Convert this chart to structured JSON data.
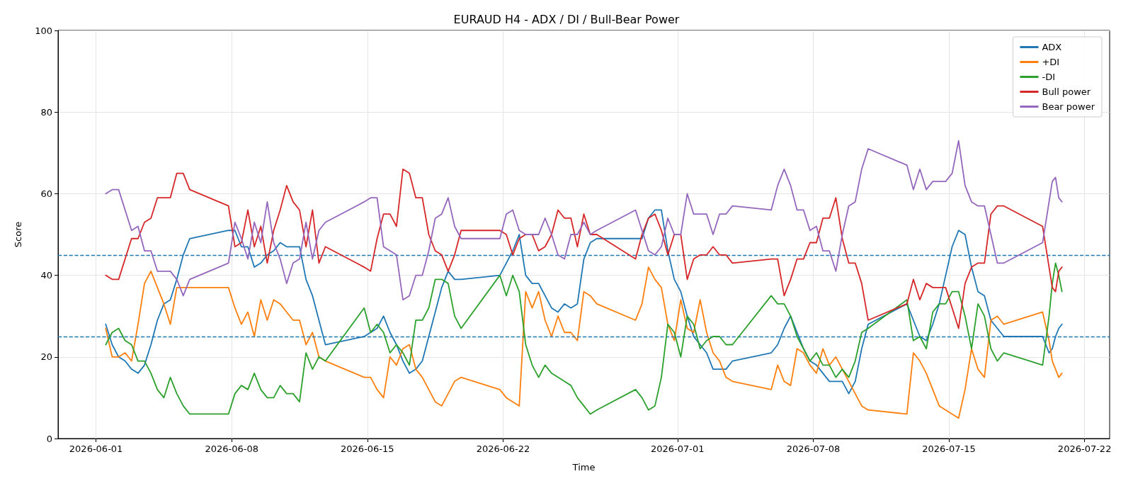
{
  "chart_data": {
    "type": "line",
    "title": "EURAUD H4 - ADX / DI / Bull-Bear Power",
    "xlabel": "Time",
    "ylabel": "Score",
    "x": [
      "2026-06-01T12:00",
      "2026-06-01T20:00",
      "2026-06-02T04:00",
      "2026-06-02T12:00",
      "2026-06-02T20:00",
      "2026-06-03T04:00",
      "2026-06-03T12:00",
      "2026-06-03T20:00",
      "2026-06-04T04:00",
      "2026-06-04T12:00",
      "2026-06-04T20:00",
      "2026-06-05T04:00",
      "2026-06-05T12:00",
      "2026-06-05T20:00",
      "2026-06-07T20:00",
      "2026-06-08T04:00",
      "2026-06-08T12:00",
      "2026-06-08T20:00",
      "2026-06-09T04:00",
      "2026-06-09T12:00",
      "2026-06-09T20:00",
      "2026-06-10T04:00",
      "2026-06-10T12:00",
      "2026-06-10T20:00",
      "2026-06-11T04:00",
      "2026-06-11T12:00",
      "2026-06-11T20:00",
      "2026-06-12T04:00",
      "2026-06-12T12:00",
      "2026-06-12T20:00",
      "2026-06-14T20:00",
      "2026-06-15T04:00",
      "2026-06-15T12:00",
      "2026-06-15T20:00",
      "2026-06-16T04:00",
      "2026-06-16T12:00",
      "2026-06-16T20:00",
      "2026-06-17T04:00",
      "2026-06-17T12:00",
      "2026-06-17T20:00",
      "2026-06-18T04:00",
      "2026-06-18T12:00",
      "2026-06-18T20:00",
      "2026-06-19T04:00",
      "2026-06-19T12:00",
      "2026-06-19T20:00",
      "2026-06-21T20:00",
      "2026-06-22T04:00",
      "2026-06-22T12:00",
      "2026-06-22T20:00",
      "2026-06-23T04:00",
      "2026-06-23T12:00",
      "2026-06-23T20:00",
      "2026-06-24T04:00",
      "2026-06-24T12:00",
      "2026-06-24T20:00",
      "2026-06-25T04:00",
      "2026-06-25T12:00",
      "2026-06-25T20:00",
      "2026-06-26T04:00",
      "2026-06-26T12:00",
      "2026-06-26T20:00",
      "2026-06-28T20:00",
      "2026-06-29T04:00",
      "2026-06-29T12:00",
      "2026-06-29T20:00",
      "2026-06-30T04:00",
      "2026-06-30T12:00",
      "2026-06-30T20:00",
      "2026-07-01T04:00",
      "2026-07-01T12:00",
      "2026-07-01T20:00",
      "2026-07-02T04:00",
      "2026-07-02T12:00",
      "2026-07-02T20:00",
      "2026-07-03T04:00",
      "2026-07-03T12:00",
      "2026-07-03T20:00",
      "2026-07-05T20:00",
      "2026-07-06T04:00",
      "2026-07-06T12:00",
      "2026-07-06T20:00",
      "2026-07-07T04:00",
      "2026-07-07T12:00",
      "2026-07-07T20:00",
      "2026-07-08T04:00",
      "2026-07-08T12:00",
      "2026-07-08T20:00",
      "2026-07-09T04:00",
      "2026-07-09T12:00",
      "2026-07-09T20:00",
      "2026-07-10T04:00",
      "2026-07-10T12:00",
      "2026-07-10T20:00",
      "2026-07-12T20:00",
      "2026-07-13T04:00",
      "2026-07-13T12:00",
      "2026-07-13T20:00",
      "2026-07-14T04:00",
      "2026-07-14T12:00",
      "2026-07-14T20:00",
      "2026-07-15T04:00",
      "2026-07-15T12:00",
      "2026-07-15T20:00",
      "2026-07-16T04:00",
      "2026-07-16T12:00",
      "2026-07-16T20:00",
      "2026-07-17T04:00",
      "2026-07-17T12:00",
      "2026-07-17T20:00",
      "2026-07-19T20:00",
      "2026-07-20T04:00",
      "2026-07-20T08:00",
      "2026-07-20T12:00",
      "2026-07-20T16:00",
      "2026-07-20T20:00"
    ],
    "series": [
      {
        "name": "ADX",
        "color": "#1f77b4",
        "values": [
          28,
          23,
          20,
          19,
          17,
          16,
          18,
          23,
          29,
          33,
          34,
          39,
          45,
          49,
          51,
          51,
          47,
          47,
          42,
          43,
          45,
          46,
          48,
          47,
          47,
          47,
          39,
          35,
          29,
          23,
          25,
          26,
          27,
          30,
          26,
          23,
          19,
          16,
          17,
          19,
          25,
          31,
          37,
          41,
          39,
          39,
          40,
          43,
          46,
          50,
          40,
          38,
          38,
          35,
          32,
          31,
          33,
          32,
          33,
          44,
          48,
          49,
          49,
          49,
          54,
          56,
          56,
          46,
          39,
          36,
          30,
          25,
          23,
          21,
          17,
          17,
          17,
          19,
          21,
          23,
          27,
          30,
          26,
          22,
          19,
          18,
          16,
          14,
          14,
          14,
          11,
          14,
          22,
          28,
          33,
          29,
          25,
          24,
          28,
          33,
          40,
          47,
          51,
          50,
          42,
          36,
          35,
          29,
          27,
          25,
          25,
          21,
          22,
          25,
          27,
          28
        ]
      },
      {
        "name": "+DI",
        "color": "#ff7f0e",
        "values": [
          27,
          20,
          20,
          21,
          19,
          28,
          38,
          41,
          37,
          33,
          28,
          37,
          37,
          37,
          37,
          32,
          28,
          31,
          25,
          34,
          29,
          34,
          33,
          31,
          29,
          29,
          23,
          26,
          20,
          19,
          15,
          15,
          12,
          10,
          20,
          18,
          22,
          23,
          17,
          15,
          12,
          9,
          8,
          11,
          14,
          15,
          12,
          10,
          9,
          8,
          36,
          32,
          36,
          29,
          25,
          30,
          26,
          26,
          24,
          36,
          35,
          33,
          29,
          33,
          42,
          39,
          37,
          28,
          24,
          34,
          27,
          26,
          34,
          26,
          21,
          19,
          15,
          14,
          12,
          18,
          14,
          13,
          22,
          21,
          18,
          16,
          22,
          18,
          20,
          17,
          14,
          11,
          8,
          7,
          6,
          21,
          19,
          16,
          12,
          8,
          7,
          6,
          5,
          12,
          22,
          17,
          15,
          29,
          30,
          28,
          31,
          24,
          19,
          17,
          15,
          16
        ]
      },
      {
        "name": "-DI",
        "color": "#2ca02c",
        "values": [
          23,
          26,
          27,
          24,
          23,
          19,
          19,
          16,
          12,
          10,
          15,
          11,
          8,
          6,
          6,
          11,
          13,
          12,
          16,
          12,
          10,
          10,
          13,
          11,
          11,
          9,
          21,
          17,
          20,
          19,
          32,
          26,
          28,
          26,
          21,
          23,
          21,
          18,
          29,
          29,
          32,
          39,
          39,
          38,
          30,
          27,
          40,
          35,
          40,
          36,
          23,
          18,
          15,
          18,
          16,
          15,
          14,
          13,
          10,
          8,
          6,
          7,
          12,
          10,
          7,
          8,
          15,
          28,
          26,
          20,
          30,
          28,
          22,
          24,
          25,
          25,
          23,
          23,
          35,
          33,
          33,
          30,
          25,
          22,
          19,
          21,
          18,
          18,
          15,
          17,
          15,
          19,
          26,
          27,
          34,
          24,
          25,
          22,
          31,
          33,
          33,
          36,
          36,
          30,
          22,
          33,
          30,
          22,
          19,
          21,
          18,
          30,
          38,
          43,
          40,
          36
        ]
      },
      {
        "name": "Bull power",
        "color": "#d62728",
        "values": [
          40,
          39,
          39,
          44,
          49,
          49,
          53,
          54,
          59,
          59,
          59,
          65,
          65,
          61,
          57,
          47,
          48,
          56,
          47,
          52,
          43,
          51,
          56,
          62,
          58,
          56,
          47,
          56,
          43,
          47,
          42,
          41,
          49,
          55,
          55,
          52,
          66,
          65,
          59,
          59,
          50,
          46,
          45,
          41,
          45,
          51,
          51,
          50,
          45,
          49,
          50,
          50,
          46,
          47,
          50,
          56,
          54,
          54,
          47,
          55,
          50,
          50,
          44,
          50,
          54,
          55,
          51,
          45,
          50,
          50,
          39,
          44,
          45,
          45,
          47,
          45,
          45,
          43,
          44,
          44,
          35,
          39,
          44,
          44,
          48,
          48,
          54,
          54,
          59,
          49,
          43,
          43,
          38,
          29,
          33,
          39,
          34,
          38,
          37,
          37,
          37,
          32,
          27,
          38,
          42,
          43,
          43,
          55,
          57,
          57,
          52,
          42,
          37,
          36,
          41,
          42
        ]
      },
      {
        "name": "Bear power",
        "color": "#9467bd",
        "values": [
          60,
          61,
          61,
          56,
          51,
          52,
          46,
          46,
          41,
          41,
          41,
          39,
          35,
          39,
          43,
          53,
          49,
          44,
          53,
          48,
          58,
          48,
          44,
          38,
          43,
          44,
          53,
          44,
          51,
          53,
          58,
          59,
          59,
          47,
          46,
          45,
          34,
          35,
          40,
          40,
          46,
          54,
          55,
          59,
          52,
          49,
          49,
          55,
          56,
          51,
          50,
          50,
          50,
          54,
          50,
          45,
          44,
          50,
          50,
          53,
          50,
          51,
          56,
          51,
          46,
          45,
          47,
          54,
          50,
          50,
          60,
          55,
          55,
          55,
          50,
          55,
          55,
          57,
          56,
          62,
          66,
          62,
          56,
          56,
          51,
          52,
          46,
          46,
          41,
          50,
          57,
          58,
          66,
          71,
          67,
          61,
          66,
          61,
          63,
          63,
          63,
          65,
          73,
          62,
          58,
          57,
          57,
          50,
          43,
          43,
          48,
          58,
          63,
          64,
          59,
          58
        ]
      }
    ],
    "xlim": [
      "2026-05-30T01:00",
      "2026-07-23T07:00"
    ],
    "xticks": [
      "2026-06-01",
      "2026-06-08",
      "2026-06-15",
      "2026-06-22",
      "2026-07-01",
      "2026-07-08",
      "2026-07-15",
      "2026-07-22"
    ],
    "ylim": [
      0,
      100
    ],
    "yticks": [
      0,
      20,
      40,
      60,
      80,
      100
    ],
    "ref_lines": [
      {
        "axis": "y",
        "value": 45,
        "color": "#1f77b4",
        "line_style": "dashed"
      },
      {
        "axis": "y",
        "value": 25,
        "color": "#1f77b4",
        "line_style": "dashed"
      }
    ],
    "grid": true,
    "legend": "top right"
  }
}
